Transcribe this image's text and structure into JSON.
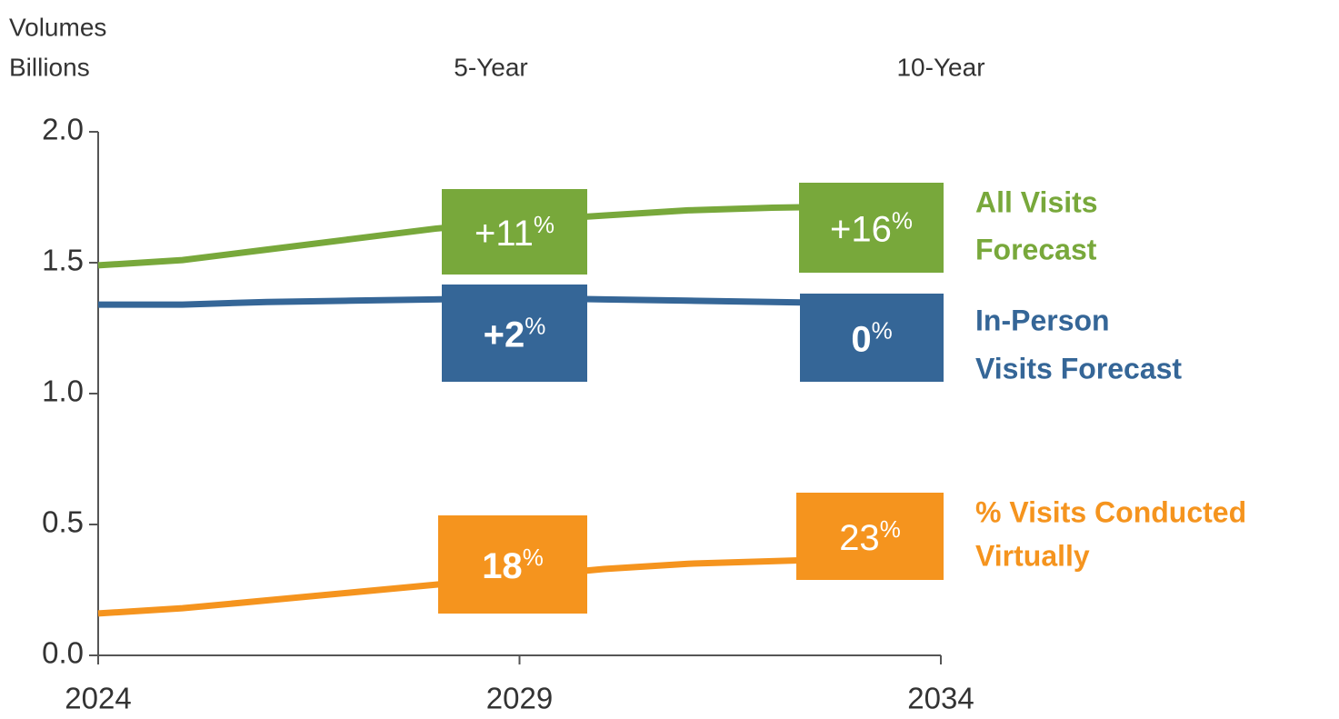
{
  "chart_data": {
    "type": "line",
    "header": [
      "Volumes",
      "Billions"
    ],
    "column_headers": [
      "5-Year",
      "10-Year"
    ],
    "x": [
      2024,
      2025,
      2026,
      2027,
      2028,
      2029,
      2030,
      2031,
      2032,
      2033,
      2034
    ],
    "xlim": [
      2024,
      2034
    ],
    "xticks": [
      2024,
      2029,
      2034
    ],
    "ylim": [
      0,
      2
    ],
    "yticks": [
      {
        "value": 0,
        "label": "0.0"
      },
      {
        "value": 0.5,
        "label": "0.5"
      },
      {
        "value": 1,
        "label": "1.0"
      },
      {
        "value": 1.5,
        "label": "1.5"
      },
      {
        "value": 2,
        "label": "2.0"
      }
    ],
    "series": [
      {
        "name_lines": [
          "All Visits",
          "Forecast"
        ],
        "color": "#78a83b",
        "values": [
          1.49,
          1.51,
          1.55,
          1.59,
          1.63,
          1.66,
          1.68,
          1.7,
          1.71,
          1.715,
          1.72
        ],
        "annotations": [
          {
            "value": "+11",
            "unit": "%"
          },
          {
            "value": "+16",
            "unit": "%"
          }
        ]
      },
      {
        "name_lines": [
          "In-Person",
          "Visits Forecast"
        ],
        "color": "#356697",
        "values": [
          1.34,
          1.34,
          1.35,
          1.355,
          1.36,
          1.365,
          1.36,
          1.355,
          1.35,
          1.345,
          1.34
        ],
        "annotations": [
          {
            "value": "+2",
            "unit": "%"
          },
          {
            "value": "0",
            "unit": "%"
          }
        ]
      },
      {
        "name_lines": [
          "% Visits Conducted",
          "Virtually"
        ],
        "color": "#f5941e",
        "values": [
          0.16,
          0.18,
          0.21,
          0.24,
          0.27,
          0.3,
          0.33,
          0.35,
          0.36,
          0.37,
          0.38
        ],
        "annotations": [
          {
            "value": "18",
            "unit": "%"
          },
          {
            "value": "23",
            "unit": "%"
          }
        ]
      }
    ]
  }
}
